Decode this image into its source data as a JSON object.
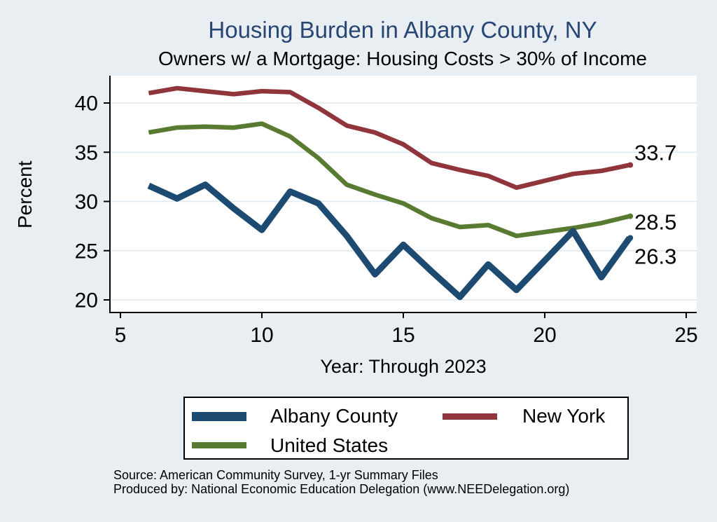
{
  "title": "Housing Burden in Albany County, NY",
  "subtitle": "Owners w/ a Mortgage: Housing Costs > 30% of Income",
  "colors": {
    "background": "#e9eef2",
    "plot_bg": "#ffffff",
    "grid": "#dde9f1",
    "axis": "#000000",
    "title": "#284674",
    "albany": "#1d4a71",
    "new_york": "#90353b",
    "united_states": "#587a31"
  },
  "chart_data": {
    "type": "line",
    "title": "Housing Burden in Albany County, NY",
    "subtitle": "Owners w/ a Mortgage: Housing Costs > 30% of Income",
    "xlabel": "Year: Through 2023",
    "ylabel": "Percent",
    "xticks": [
      5,
      10,
      15,
      20,
      25
    ],
    "yticks": [
      20,
      25,
      30,
      35,
      40
    ],
    "xlim": [
      4.6,
      25.4
    ],
    "ylim": [
      18.8,
      42.9
    ],
    "grid": "horizontal",
    "legend_position": "bottom",
    "x": [
      6,
      7,
      8,
      9,
      10,
      11,
      12,
      13,
      14,
      15,
      16,
      17,
      18,
      19,
      20,
      21,
      22,
      23
    ],
    "series": [
      {
        "name": "Albany County",
        "color_key": "albany",
        "end_label": "26.3",
        "values": [
          31.6,
          30.3,
          31.7,
          29.3,
          27.1,
          31.0,
          29.8,
          26.5,
          22.6,
          25.6,
          22.9,
          20.3,
          23.6,
          21.0,
          24.0,
          27.0,
          22.3,
          26.3
        ]
      },
      {
        "name": "New York",
        "color_key": "new_york",
        "end_label": "33.7",
        "values": [
          41.0,
          41.5,
          41.2,
          40.9,
          41.2,
          41.1,
          39.5,
          37.7,
          37.0,
          35.8,
          33.9,
          33.2,
          32.6,
          31.4,
          32.1,
          32.8,
          33.1,
          33.7
        ]
      },
      {
        "name": "United States",
        "color_key": "united_states",
        "end_label": "28.5",
        "values": [
          37.0,
          37.5,
          37.6,
          37.5,
          37.9,
          36.6,
          34.4,
          31.7,
          30.7,
          29.8,
          28.3,
          27.4,
          27.6,
          26.5,
          26.9,
          27.3,
          27.8,
          28.5
        ]
      }
    ]
  },
  "source_line1": "Source: American Community Survey, 1-yr Summary Files",
  "source_line2": "Produced by: National Economic Education Delegation (www.NEEDelegation.org)"
}
